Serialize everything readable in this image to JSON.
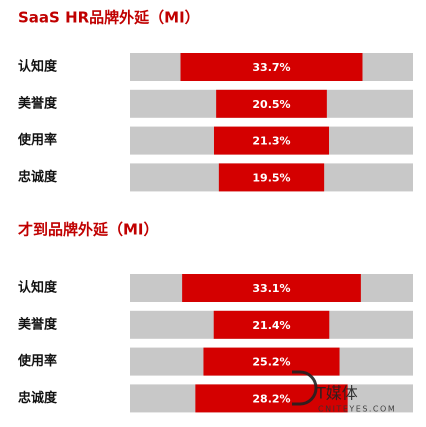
{
  "chart_data": [
    {
      "type": "bar",
      "orientation": "horizontal",
      "title": "SaaS  HR品牌外延（MI）",
      "categories": [
        "认知度",
        "美誉度",
        "使用率",
        "忠诚度"
      ],
      "values": [
        33.7,
        20.5,
        21.3,
        19.5
      ],
      "value_labels": [
        "33.7%",
        "20.5%",
        "21.3%",
        "19.5%"
      ],
      "color": "#d40000"
    },
    {
      "type": "bar",
      "orientation": "horizontal",
      "title": "才到品牌外延（MI）",
      "categories": [
        "认知度",
        "美誉度",
        "使用率",
        "忠诚度"
      ],
      "values": [
        33.1,
        21.4,
        25.2,
        28.2
      ],
      "value_labels": [
        "33.1%",
        "21.4%",
        "25.2%",
        "28.2%"
      ],
      "color": "#d40000"
    }
  ],
  "watermark": {
    "brand": "T媒体",
    "site": "CNITEYES.COM"
  }
}
